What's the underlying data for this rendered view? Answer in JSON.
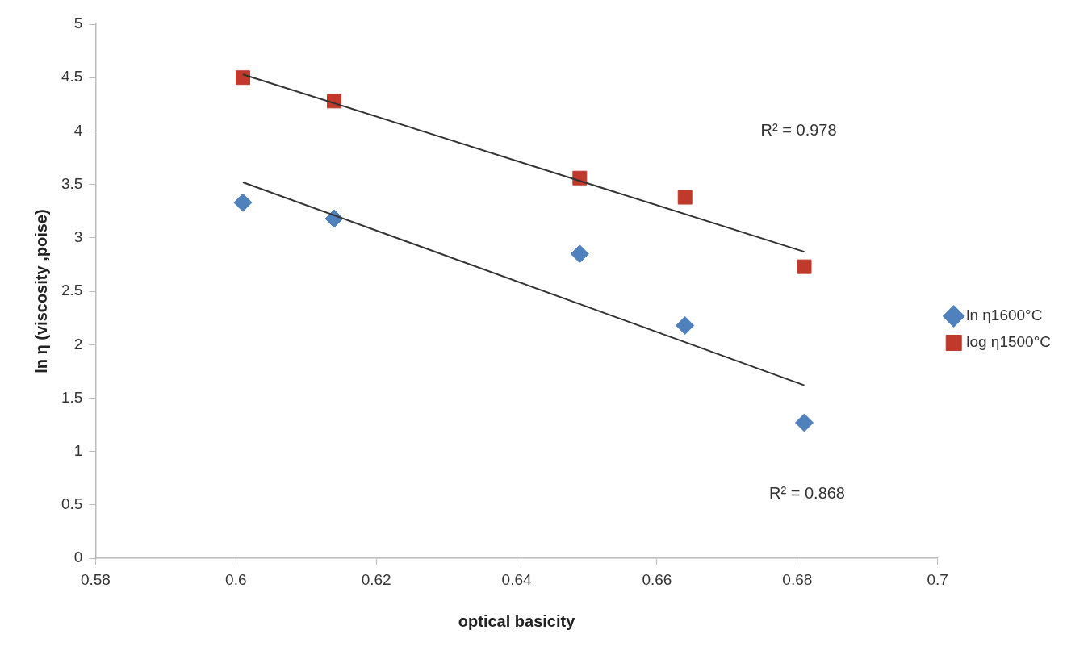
{
  "chart_data": {
    "type": "scatter",
    "xlabel": "optical basicity",
    "ylabel": "ln η (viscosity ,poise)",
    "xlim": [
      0.58,
      0.7
    ],
    "xticks": [
      0.58,
      0.6,
      0.62,
      0.64,
      0.66,
      0.68,
      0.7
    ],
    "ylim": [
      0,
      5
    ],
    "yticks": [
      0,
      0.5,
      1,
      1.5,
      2,
      2.5,
      3,
      3.5,
      4,
      4.5,
      5
    ],
    "grid": false,
    "legend": "right",
    "series": [
      {
        "name": "ln η1600°C",
        "type": "scatter",
        "marker": "diamond",
        "color": "#4f81bd",
        "x": [
          0.601,
          0.614,
          0.649,
          0.664,
          0.681
        ],
        "values": [
          3.33,
          3.18,
          2.85,
          2.18,
          1.27
        ]
      },
      {
        "name": "log η1500°C",
        "type": "scatter",
        "marker": "square",
        "color": "#c0392b",
        "x": [
          0.601,
          0.614,
          0.649,
          0.664,
          0.681
        ],
        "values": [
          4.5,
          4.28,
          3.56,
          3.38,
          2.73
        ]
      },
      {
        "type": "line",
        "marker": "none",
        "color": "#333333",
        "x": [
          0.601,
          0.681
        ],
        "values": [
          4.53,
          2.87
        ]
      },
      {
        "type": "line",
        "marker": "none",
        "color": "#333333",
        "x": [
          0.601,
          0.681
        ],
        "values": [
          3.52,
          1.62
        ]
      }
    ],
    "annotations": [
      "R² = 0.978",
      "R² = 0.868"
    ]
  }
}
